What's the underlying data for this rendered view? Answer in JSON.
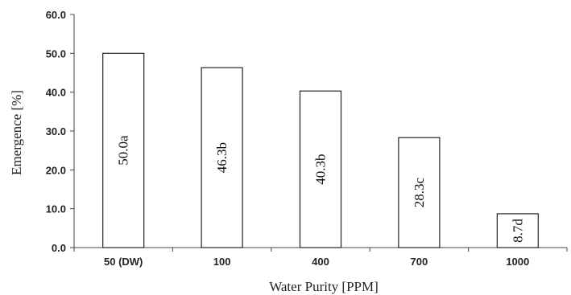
{
  "chart_data": {
    "type": "bar",
    "xlabel": "Water Purity [PPM]",
    "ylabel": "Emergence [%]",
    "ylim": [
      0,
      60
    ],
    "yticks": [
      "0.0",
      "10.0",
      "20.0",
      "30.0",
      "40.0",
      "50.0",
      "60.0"
    ],
    "categories": [
      "50 (DW)",
      "100",
      "400",
      "700",
      "1000"
    ],
    "values": [
      50.0,
      46.3,
      40.3,
      28.3,
      8.7
    ],
    "data_labels": [
      "50.0a",
      "46.3b",
      "40.3b",
      "28.3c",
      "8.7d"
    ],
    "grid": false,
    "legend": "none"
  }
}
